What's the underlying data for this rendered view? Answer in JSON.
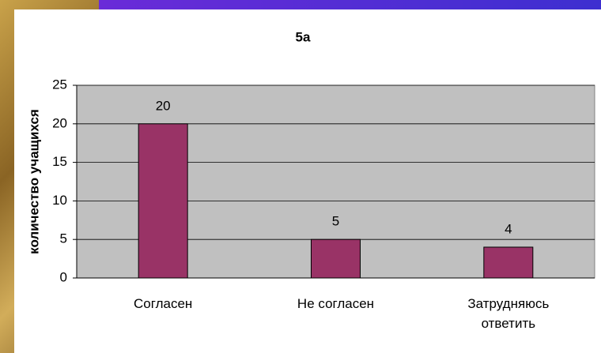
{
  "chart_data": {
    "type": "bar",
    "title": "5a",
    "y_label": "количество учащихся",
    "categories": [
      "Согласен",
      "Не согласен",
      "Затрудняюсь ответить"
    ],
    "values": [
      20,
      5,
      4
    ],
    "color": "#993366",
    "plot_color": "#c0c0c0",
    "ylim": [
      0,
      25
    ],
    "yticks": [
      0,
      5,
      10,
      15,
      20,
      25
    ],
    "grid": true
  }
}
